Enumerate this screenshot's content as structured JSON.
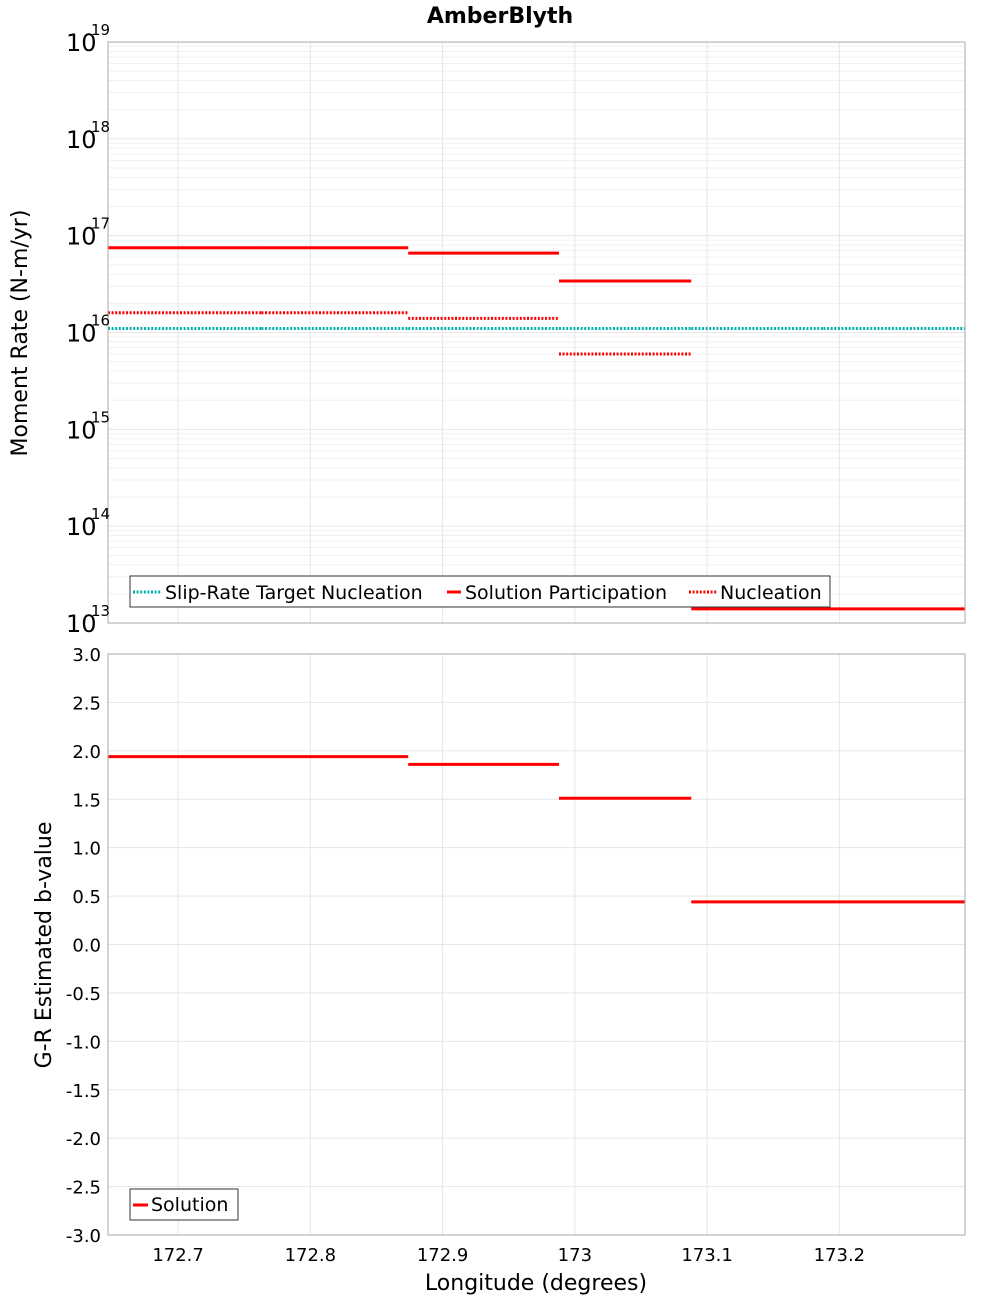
{
  "chart_data": [
    {
      "type": "line",
      "title": "AmberBlyth",
      "xlabel": "",
      "ylabel": "Moment Rate (N-m/yr)",
      "yscale": "log",
      "ylim": [
        10000000000000.0,
        1e+19
      ],
      "xlim": [
        172.647,
        173.295
      ],
      "y_ticks": [
        {
          "base": "10",
          "exp": "13"
        },
        {
          "base": "10",
          "exp": "14"
        },
        {
          "base": "10",
          "exp": "15"
        },
        {
          "base": "10",
          "exp": "16"
        },
        {
          "base": "10",
          "exp": "17"
        },
        {
          "base": "10",
          "exp": "18"
        },
        {
          "base": "10",
          "exp": "19"
        }
      ],
      "grid": true,
      "legend": "bottom-left",
      "legend_labels": [
        "Slip-Rate Target Nucleation",
        "Solution Participation",
        "Nucleation"
      ],
      "series": [
        {
          "name": "Slip-Rate Target Nucleation",
          "color": "#00b3b3",
          "style": "dotted",
          "segments": [
            {
              "x": [
                172.647,
                172.763
              ],
              "y": 1.1e+16
            },
            {
              "x": [
                172.763,
                172.874
              ],
              "y": 1.1e+16
            },
            {
              "x": [
                172.874,
                172.988
              ],
              "y": 1.1e+16
            },
            {
              "x": [
                172.988,
                173.088
              ],
              "y": 1.1e+16
            },
            {
              "x": [
                173.088,
                173.188
              ],
              "y": 1.1e+16
            },
            {
              "x": [
                173.188,
                173.295
              ],
              "y": 1.1e+16
            }
          ]
        },
        {
          "name": "Solution Participation",
          "color": "#ff0000",
          "style": "solid",
          "segments": [
            {
              "x": [
                172.647,
                172.763
              ],
              "y": 7.5e+16
            },
            {
              "x": [
                172.763,
                172.874
              ],
              "y": 7.5e+16
            },
            {
              "x": [
                172.874,
                172.988
              ],
              "y": 6.6e+16
            },
            {
              "x": [
                172.988,
                173.088
              ],
              "y": 3.4e+16
            },
            {
              "x": [
                173.088,
                173.188
              ],
              "y": 14000000000000.0
            },
            {
              "x": [
                173.188,
                173.295
              ],
              "y": 14000000000000.0
            }
          ]
        },
        {
          "name": "Nucleation",
          "color": "#ff0000",
          "style": "dotted",
          "segments": [
            {
              "x": [
                172.647,
                172.763
              ],
              "y": 1.6e+16
            },
            {
              "x": [
                172.763,
                172.874
              ],
              "y": 1.6e+16
            },
            {
              "x": [
                172.874,
                172.988
              ],
              "y": 1.4e+16
            },
            {
              "x": [
                172.988,
                173.088
              ],
              "y": 6000000000000000.0
            }
          ]
        }
      ]
    },
    {
      "type": "line",
      "title": "",
      "xlabel": "Longitude (degrees)",
      "ylabel": "G-R Estimated b-value",
      "ylim": [
        -3.0,
        3.0
      ],
      "xlim": [
        172.647,
        173.295
      ],
      "x_ticks": [
        "172.7",
        "172.8",
        "172.9",
        "173",
        "173.1",
        "173.2"
      ],
      "x_tick_values": [
        172.7,
        172.8,
        172.9,
        173.0,
        173.1,
        173.2
      ],
      "y_ticks": [
        "-3.0",
        "-2.5",
        "-2.0",
        "-1.5",
        "-1.0",
        "-0.5",
        "0.0",
        "0.5",
        "1.0",
        "1.5",
        "2.0",
        "2.5",
        "3.0"
      ],
      "y_tick_values": [
        -3.0,
        -2.5,
        -2.0,
        -1.5,
        -1.0,
        -0.5,
        0.0,
        0.5,
        1.0,
        1.5,
        2.0,
        2.5,
        3.0
      ],
      "grid": true,
      "legend": "bottom-left",
      "legend_labels": [
        "Solution"
      ],
      "series": [
        {
          "name": "Solution",
          "color": "#ff0000",
          "style": "solid",
          "segments": [
            {
              "x": [
                172.647,
                172.763
              ],
              "y": 1.94
            },
            {
              "x": [
                172.763,
                172.874
              ],
              "y": 1.94
            },
            {
              "x": [
                172.874,
                172.988
              ],
              "y": 1.86
            },
            {
              "x": [
                172.988,
                173.088
              ],
              "y": 1.51
            },
            {
              "x": [
                173.088,
                173.188
              ],
              "y": 0.44
            },
            {
              "x": [
                173.188,
                173.295
              ],
              "y": 0.44
            }
          ]
        }
      ]
    }
  ]
}
